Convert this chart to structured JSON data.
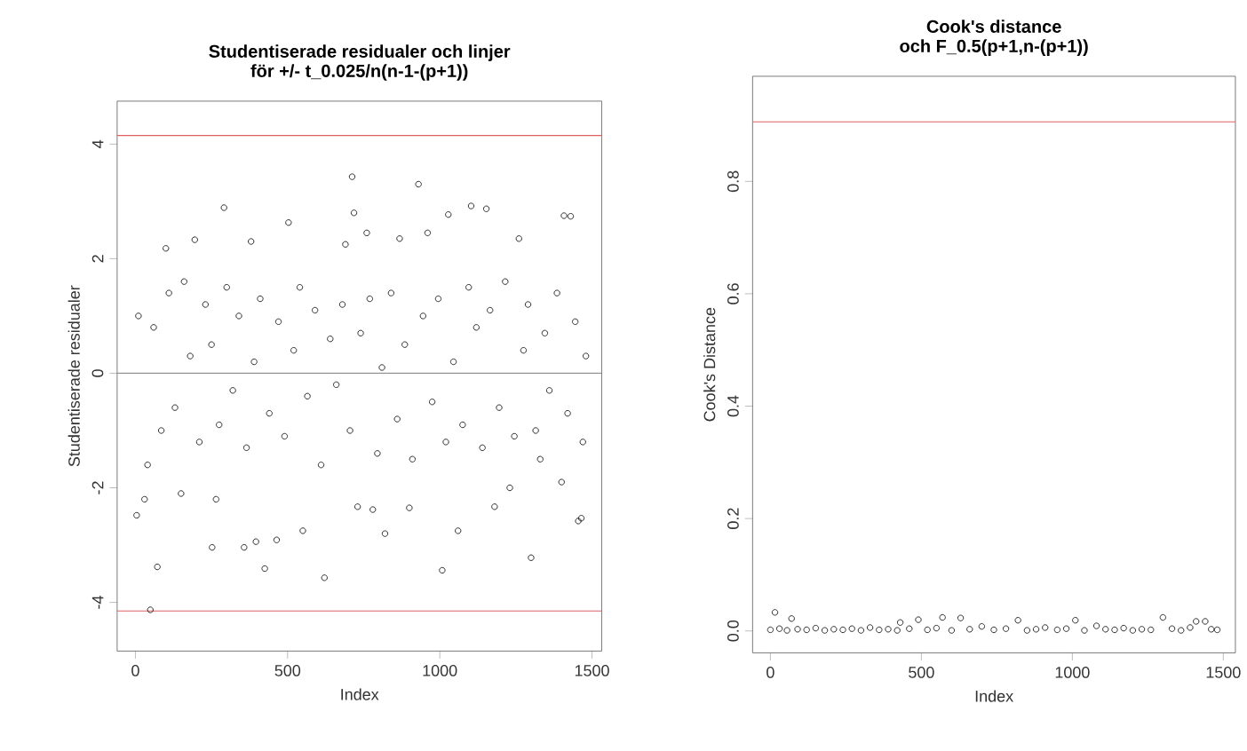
{
  "chart_data": [
    {
      "type": "scatter",
      "title": "Studentiserade residualer och linjer",
      "subtitle": "för +/- t_0.025/n(n-1-(p+1))",
      "xlabel": "Index",
      "ylabel": "Studentiserade residualer",
      "marker": "circle",
      "grid": false,
      "xlim": [
        -60,
        1532
      ],
      "ylim": [
        -4.85,
        4.75
      ],
      "xticks": [
        0,
        500,
        1000,
        1500
      ],
      "yticks": [
        -4,
        -2,
        0,
        2,
        4
      ],
      "ref_lines": [
        {
          "axis": "y",
          "value": 4.15,
          "color": "#e06060"
        },
        {
          "axis": "y",
          "value": -4.15,
          "color": "#e06060"
        },
        {
          "axis": "y",
          "value": 0,
          "color": "#909090"
        }
      ],
      "series": [
        {
          "color": "#000000",
          "x": [
            4,
            49,
            72,
            291,
            252,
            357,
            396,
            425,
            464,
            503,
            621,
            712,
            718,
            930,
            1008,
            1103,
            1153,
            1300,
            1430,
            1408,
            1465,
            1455,
            1060,
            1028,
            195,
            380,
            100,
            820,
            550,
            730,
            780,
            900,
            1180,
            1260,
            960,
            868,
            690,
            760,
            265,
            150,
            30,
            1400,
            1230,
            1330,
            10,
            40,
            60,
            85,
            110,
            130,
            160,
            180,
            210,
            230,
            250,
            275,
            300,
            320,
            340,
            365,
            390,
            410,
            440,
            470,
            490,
            520,
            540,
            565,
            590,
            610,
            640,
            660,
            680,
            705,
            740,
            770,
            795,
            810,
            840,
            860,
            885,
            910,
            945,
            975,
            995,
            1020,
            1045,
            1075,
            1095,
            1120,
            1140,
            1165,
            1195,
            1215,
            1245,
            1275,
            1290,
            1315,
            1345,
            1360,
            1385,
            1420,
            1445,
            1470,
            1480
          ],
          "values": [
            -2.48,
            -4.13,
            -3.38,
            2.89,
            -3.04,
            -3.04,
            -2.94,
            -3.41,
            -2.91,
            2.63,
            -3.57,
            3.43,
            2.8,
            3.3,
            -3.44,
            2.92,
            2.87,
            -3.22,
            2.74,
            2.75,
            -2.53,
            -2.58,
            -2.75,
            2.77,
            2.33,
            2.3,
            2.18,
            -2.8,
            -2.75,
            -2.33,
            -2.38,
            -2.35,
            -2.33,
            2.35,
            2.45,
            2.35,
            2.25,
            2.45,
            -2.2,
            -2.1,
            -2.2,
            -1.9,
            -2.0,
            -1.5,
            1.0,
            -1.6,
            0.8,
            -1.0,
            1.4,
            -0.6,
            1.6,
            0.3,
            -1.2,
            1.2,
            0.5,
            -0.9,
            1.5,
            -0.3,
            1.0,
            -1.3,
            0.2,
            1.3,
            -0.7,
            0.9,
            -1.1,
            0.4,
            1.5,
            -0.4,
            1.1,
            -1.6,
            0.6,
            -0.2,
            1.2,
            -1.0,
            0.7,
            1.3,
            -1.4,
            0.1,
            1.4,
            -0.8,
            0.5,
            -1.5,
            1.0,
            -0.5,
            1.3,
            -1.2,
            0.2,
            -0.9,
            1.5,
            0.8,
            -1.3,
            1.1,
            -0.6,
            1.6,
            -1.1,
            0.4,
            1.2,
            -1.0,
            0.7,
            -0.3,
            1.4,
            -0.7,
            0.9,
            -1.2,
            0.3
          ]
        }
      ]
    },
    {
      "type": "scatter",
      "title": "Cook's distance",
      "subtitle": "och F_0.5(p+1,n-(p+1))",
      "xlabel": "Index",
      "ylabel": "Cook's Distance",
      "marker": "circle",
      "grid": false,
      "xlim": [
        -59,
        1540
      ],
      "ylim": [
        -0.039,
        0.987
      ],
      "xticks": [
        0,
        500,
        1000,
        1500
      ],
      "yticks": [
        {
          "value": 0,
          "label": "0.0"
        },
        {
          "value": 0.2,
          "label": "0.2"
        },
        {
          "value": 0.4,
          "label": "0.4"
        },
        {
          "value": 0.6,
          "label": "0.6"
        },
        {
          "value": 0.8,
          "label": "0.8"
        }
      ],
      "ref_lines": [
        {
          "axis": "y",
          "value": 0.906,
          "color": "#e06060"
        }
      ],
      "series": [
        {
          "color": "#000000",
          "x": [
            15,
            70,
            430,
            490,
            570,
            630,
            820,
            1010,
            1300,
            1410,
            1440,
            0,
            30,
            55,
            90,
            120,
            150,
            180,
            210,
            240,
            270,
            300,
            330,
            360,
            390,
            420,
            460,
            520,
            550,
            600,
            660,
            700,
            740,
            780,
            850,
            880,
            910,
            950,
            980,
            1040,
            1080,
            1110,
            1140,
            1170,
            1200,
            1230,
            1260,
            1330,
            1360,
            1390,
            1460,
            1480
          ],
          "values": [
            0.033,
            0.022,
            0.015,
            0.02,
            0.024,
            0.023,
            0.019,
            0.019,
            0.024,
            0.017,
            0.017,
            0.002,
            0.004,
            0.001,
            0.003,
            0.002,
            0.005,
            0.001,
            0.003,
            0.002,
            0.004,
            0.001,
            0.006,
            0.002,
            0.003,
            0.001,
            0.004,
            0.002,
            0.005,
            0.001,
            0.003,
            0.008,
            0.002,
            0.004,
            0.001,
            0.003,
            0.006,
            0.002,
            0.004,
            0.001,
            0.009,
            0.003,
            0.002,
            0.005,
            0.001,
            0.003,
            0.002,
            0.004,
            0.001,
            0.006,
            0.003,
            0.002
          ]
        }
      ]
    }
  ]
}
